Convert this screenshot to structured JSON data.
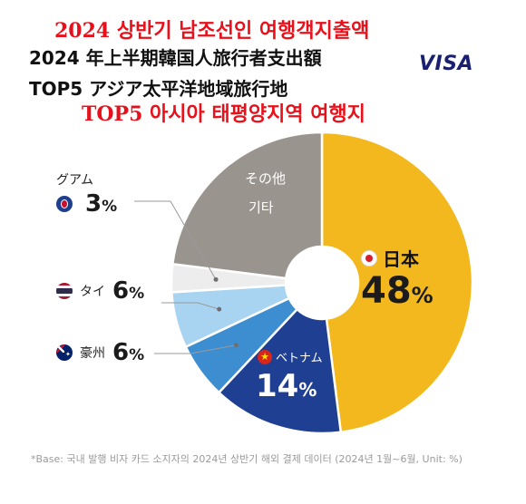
{
  "header": {
    "kor_title": "2024 상반기 남조선인 여행객지출액",
    "jp_title_line1": "2024 年上半期韓国人旅行者支出額",
    "jp_title_line2": "TOP5 アジア太平洋地域旅行地",
    "kor_subtitle": "TOP5 아시아 태평양지역 여행지",
    "brand": "VISA"
  },
  "footnote": "*Base: 국내 발행 비자 카드 소지자의 2024년 상반기 해외 결제 데이터 (2024년 1월~6월, Unit: %)",
  "colors": {
    "japan": "#f2b81e",
    "vietnam": "#1f3f93",
    "australia": "#3d8ed0",
    "thailand": "#a8d4f2",
    "guam": "#ededed",
    "other": "#9a948f",
    "title_red": "#e8101a"
  },
  "chart_data": {
    "type": "pie",
    "donut": true,
    "slices": [
      {
        "key": "japan",
        "label": "日本",
        "value": 48,
        "display": "48",
        "unit": "%"
      },
      {
        "key": "vietnam",
        "label": "ベトナム",
        "value": 14,
        "display": "14",
        "unit": "%"
      },
      {
        "key": "australia",
        "label": "豪州",
        "value": 6,
        "display": "6",
        "unit": "%"
      },
      {
        "key": "thailand",
        "label": "タイ",
        "value": 6,
        "display": "6",
        "unit": "%"
      },
      {
        "key": "guam",
        "label": "グアム",
        "value": 3,
        "display": "3",
        "unit": "%"
      },
      {
        "key": "other",
        "label": "その他",
        "label2": "기타",
        "value": 23
      }
    ]
  }
}
